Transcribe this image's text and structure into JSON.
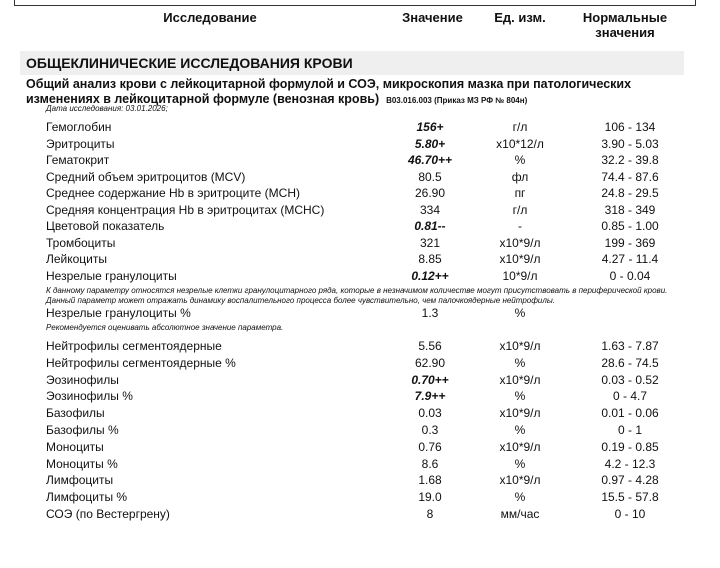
{
  "header": {
    "study": "Исследование",
    "value": "Значение",
    "unit": "Ед. изм.",
    "norm": "Нормальные значения"
  },
  "section": "ОБЩЕКЛИНИЧЕСКИЕ ИССЛЕДОВАНИЯ КРОВИ",
  "test_title": "Общий анализ крови с лейкоцитарной формулой и СОЭ, микроскопия мазка при патологических изменениях в лейкоцитарной формуле (венозная кровь)",
  "test_code": "B03.016.003 (Приказ МЗ РФ № 804н)",
  "date": "Дата исследования: 03.01.2026;",
  "rows1": [
    {
      "name": "Гемоглобин",
      "value": "156+",
      "unit": "г/л",
      "ref": "106 - 134",
      "flag": true
    },
    {
      "name": "Эритроциты",
      "value": "5.80+",
      "unit": "x10*12/л",
      "ref": "3.90 - 5.03",
      "flag": true
    },
    {
      "name": "Гематокрит",
      "value": "46.70++",
      "unit": "%",
      "ref": "32.2 - 39.8",
      "flag": true
    },
    {
      "name": "Средний объем эритроцитов (MCV)",
      "value": "80.5",
      "unit": "фл",
      "ref": "74.4 - 87.6"
    },
    {
      "name": "Среднее содержание Hb в эритроците (MCH)",
      "value": "26.90",
      "unit": "пг",
      "ref": "24.8 - 29.5"
    },
    {
      "name": "Средняя концентрация Hb в эритроцитах (MCHC)",
      "value": "334",
      "unit": "г/л",
      "ref": "318 - 349"
    },
    {
      "name": "Цветовой показатель",
      "value": "0.81--",
      "unit": "-",
      "ref": "0.85 - 1.00",
      "flag": true
    },
    {
      "name": "Тромбоциты",
      "value": "321",
      "unit": "x10*9/л",
      "ref": "199 - 369"
    },
    {
      "name": "Лейкоциты",
      "value": "8.85",
      "unit": "x10*9/л",
      "ref": "4.27 - 11.4"
    },
    {
      "name": "Незрелые гранулоциты",
      "value": "0.12++",
      "unit": "10*9/л",
      "ref": "0 - 0.04",
      "flag": true
    }
  ],
  "note1": "К данному параметру относятся незрелые клетки гранулоцитарного ряда, которые  в незначимом количестве могут присутствовать в периферической крови. Данный параметр может отражать динамику воспалительного процесса более чувствительно, чем палочкоядерные нейтрофилы.",
  "row_ig_pct": {
    "name": "Незрелые гранулоциты %",
    "value": "1.3",
    "unit": "%",
    "ref": ""
  },
  "note2": "Рекомендуется оценивать абсолютное значение параметра.",
  "rows2": [
    {
      "name": "Нейтрофилы сегментоядерные",
      "value": "5.56",
      "unit": "x10*9/л",
      "ref": "1.63 - 7.87"
    },
    {
      "name": "Нейтрофилы сегментоядерные %",
      "value": "62.90",
      "unit": "%",
      "ref": "28.6 - 74.5"
    },
    {
      "name": "Эозинофилы",
      "value": "0.70++",
      "unit": "x10*9/л",
      "ref": "0.03 - 0.52",
      "flag": true
    },
    {
      "name": "Эозинофилы %",
      "value": "7.9++",
      "unit": "%",
      "ref": "0 - 4.7",
      "flag": true
    },
    {
      "name": "Базофилы",
      "value": "0.03",
      "unit": "x10*9/л",
      "ref": "0.01 - 0.06"
    },
    {
      "name": "Базофилы %",
      "value": "0.3",
      "unit": "%",
      "ref": "0 - 1"
    },
    {
      "name": "Моноциты",
      "value": "0.76",
      "unit": "x10*9/л",
      "ref": "0.19 - 0.85"
    },
    {
      "name": "Моноциты %",
      "value": "8.6",
      "unit": "%",
      "ref": "4.2 - 12.3"
    },
    {
      "name": "Лимфоциты",
      "value": "1.68",
      "unit": "x10*9/л",
      "ref": "0.97 - 4.28"
    },
    {
      "name": "Лимфоциты %",
      "value": "19.0",
      "unit": "%",
      "ref": "15.5 - 57.8"
    },
    {
      "name": "СОЭ (по Вестергрену)",
      "value": "8",
      "unit": "мм/час",
      "ref": "0 - 10"
    }
  ]
}
